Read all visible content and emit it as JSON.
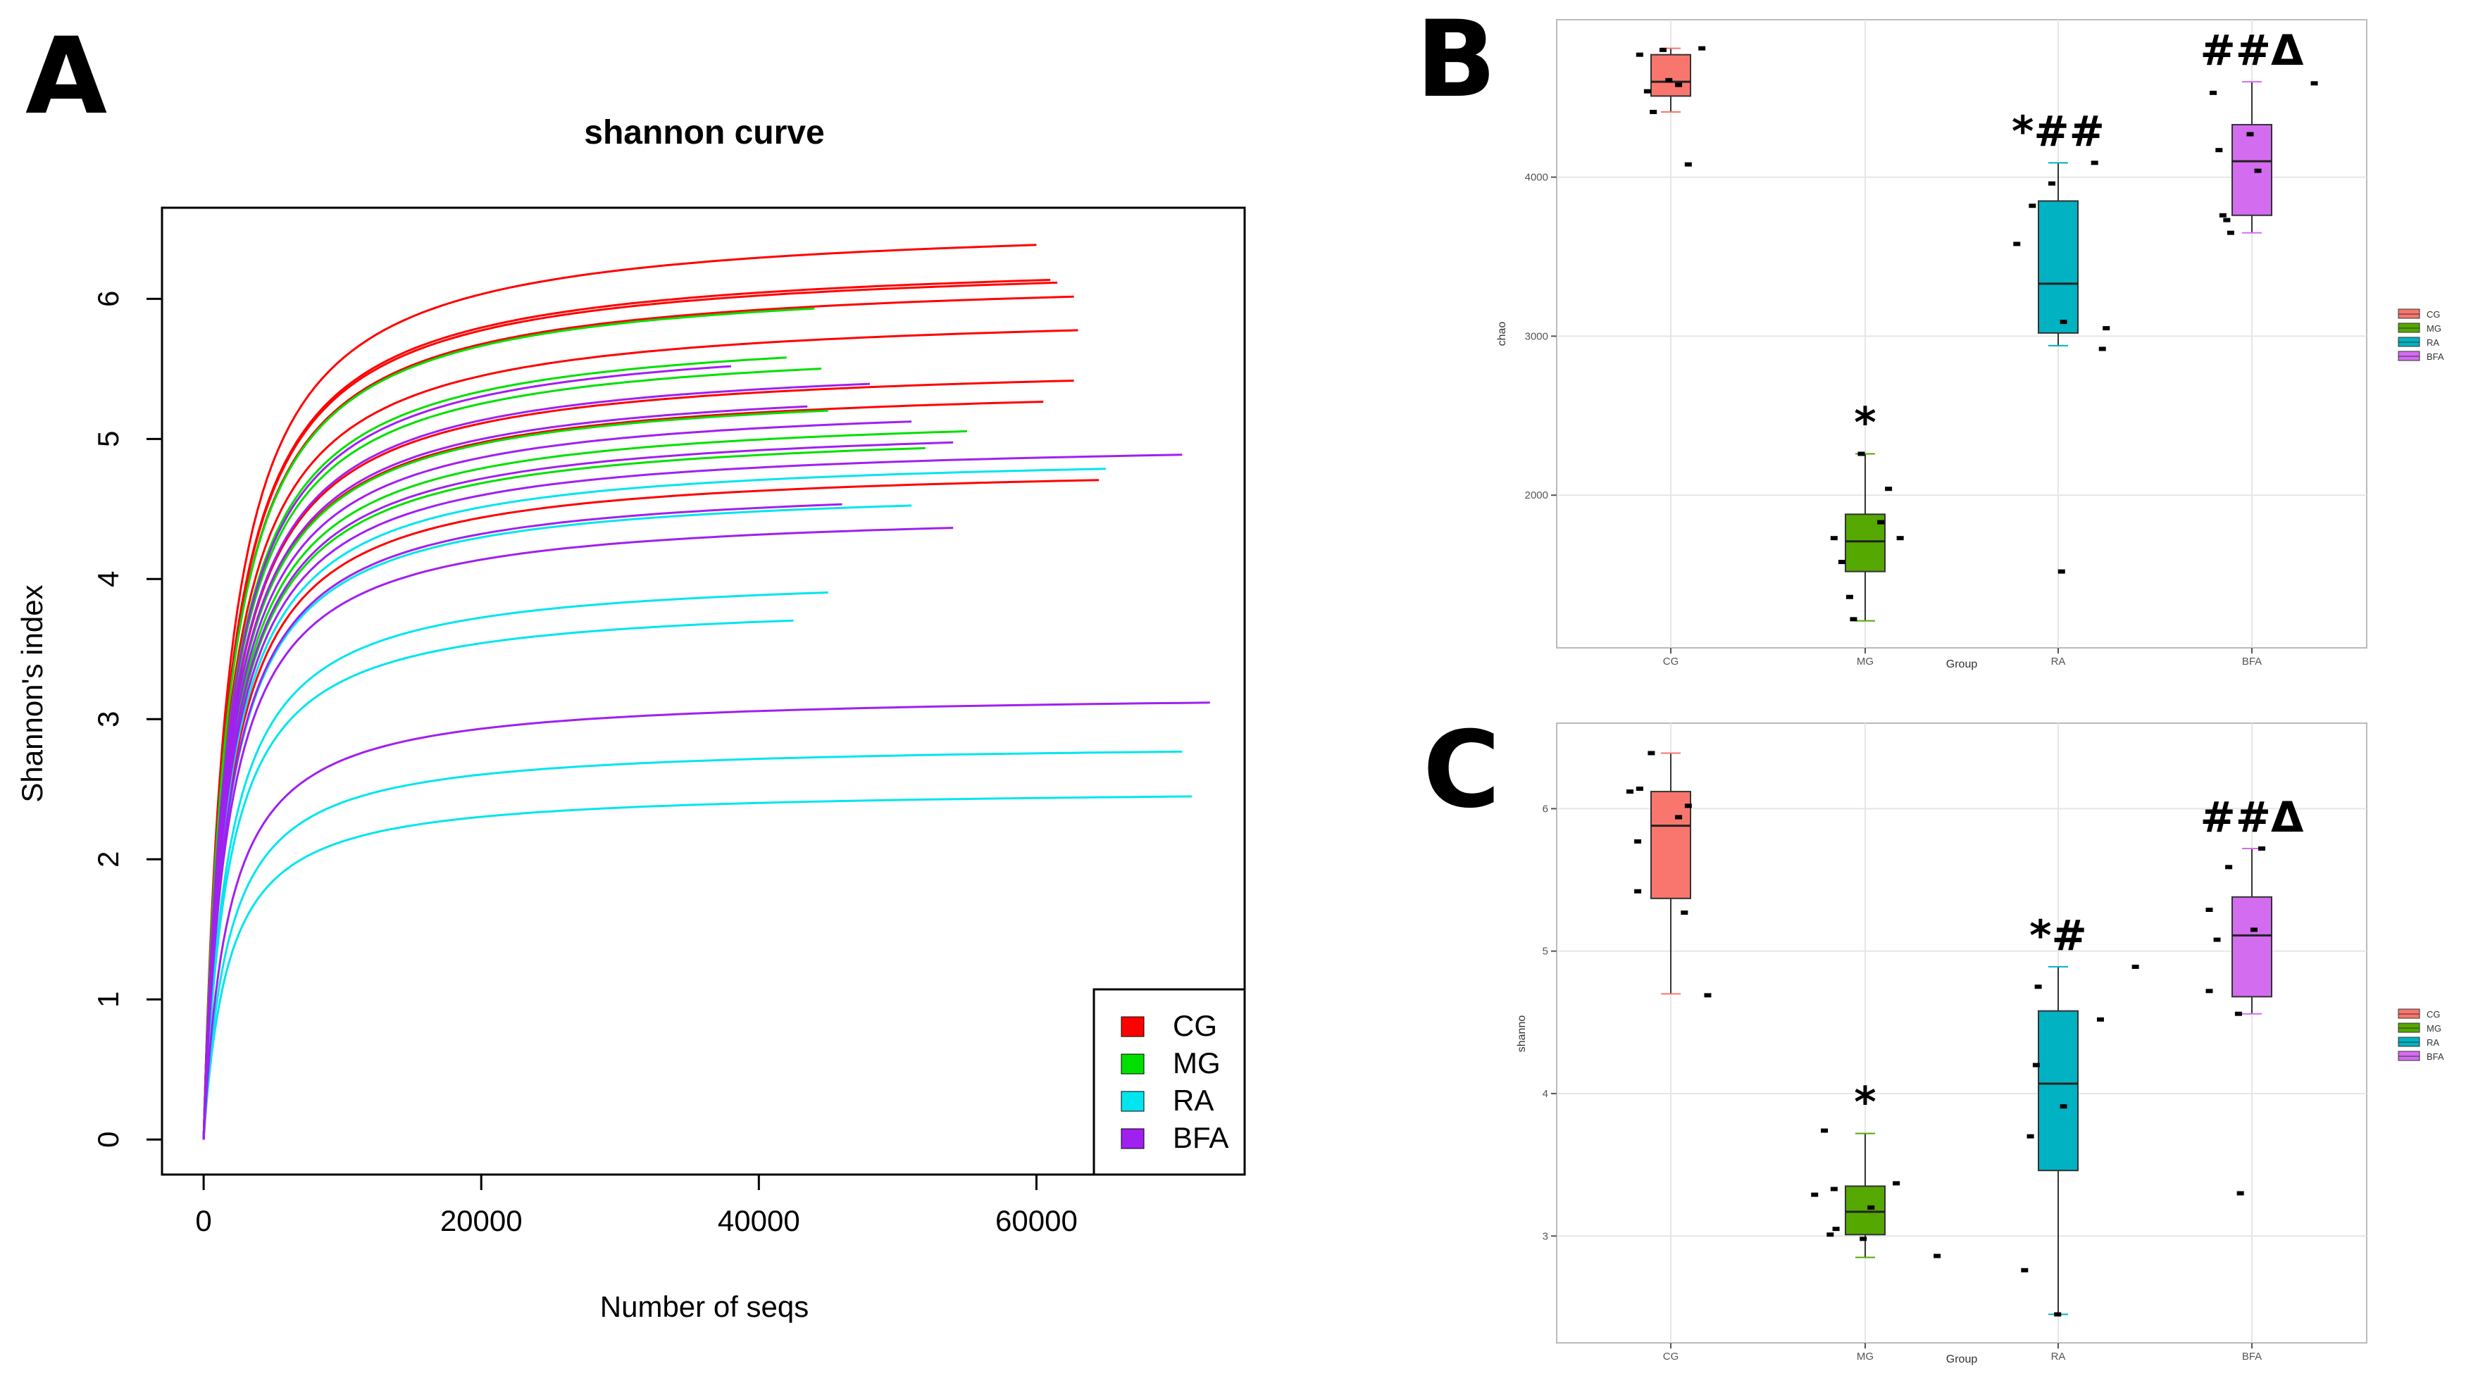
{
  "panels": {
    "a": "A",
    "b": "B",
    "c": "C"
  },
  "chart_data": [
    {
      "id": "A",
      "type": "line",
      "title": "shannon curve",
      "xlabel": "Number of seqs",
      "ylabel": "Shannon's index",
      "xlim": [
        -3000,
        75000
      ],
      "ylim": [
        -0.25,
        6.65
      ],
      "xticks": [
        0,
        20000,
        40000,
        60000
      ],
      "xtick_labels": [
        "0",
        "20000",
        "40000",
        "60000"
      ],
      "yticks": [
        0,
        1,
        2,
        3,
        4,
        5,
        6
      ],
      "ytick_labels": [
        "0",
        "1",
        "2",
        "3",
        "4",
        "5",
        "6"
      ],
      "legend": [
        {
          "label": "CG",
          "color": "#ff0000"
        },
        {
          "label": "MG",
          "color": "#00e000"
        },
        {
          "label": "RA",
          "color": "#00e5ee"
        },
        {
          "label": "BFA",
          "color": "#a020f0"
        }
      ],
      "series": [
        {
          "group": "CG",
          "end_x": 60000,
          "plateau": 6.39
        },
        {
          "group": "CG",
          "end_x": 61000,
          "plateau": 6.14
        },
        {
          "group": "CG",
          "end_x": 61500,
          "plateau": 6.12
        },
        {
          "group": "CG",
          "end_x": 62700,
          "plateau": 6.02
        },
        {
          "group": "CG",
          "end_x": 63000,
          "plateau": 5.78
        },
        {
          "group": "CG",
          "end_x": 62700,
          "plateau": 5.42
        },
        {
          "group": "CG",
          "end_x": 60500,
          "plateau": 5.27
        },
        {
          "group": "CG",
          "end_x": 64500,
          "plateau": 4.71
        },
        {
          "group": "MG",
          "end_x": 44000,
          "plateau": 5.94
        },
        {
          "group": "MG",
          "end_x": 42000,
          "plateau": 5.59
        },
        {
          "group": "MG",
          "end_x": 44500,
          "plateau": 5.51
        },
        {
          "group": "MG",
          "end_x": 45000,
          "plateau": 5.21
        },
        {
          "group": "MG",
          "end_x": 55000,
          "plateau": 5.06
        },
        {
          "group": "MG",
          "end_x": 52000,
          "plateau": 4.94
        },
        {
          "group": "RA",
          "end_x": 65000,
          "plateau": 4.79
        },
        {
          "group": "RA",
          "end_x": 51000,
          "plateau": 4.53
        },
        {
          "group": "RA",
          "end_x": 45000,
          "plateau": 3.91
        },
        {
          "group": "RA",
          "end_x": 42500,
          "plateau": 3.71
        },
        {
          "group": "RA",
          "end_x": 70500,
          "plateau": 2.77
        },
        {
          "group": "RA",
          "end_x": 71200,
          "plateau": 2.45
        },
        {
          "group": "BFA",
          "end_x": 38000,
          "plateau": 5.53
        },
        {
          "group": "BFA",
          "end_x": 48000,
          "plateau": 5.4
        },
        {
          "group": "BFA",
          "end_x": 43500,
          "plateau": 5.24
        },
        {
          "group": "BFA",
          "end_x": 51000,
          "plateau": 5.13
        },
        {
          "group": "BFA",
          "end_x": 54000,
          "plateau": 4.98
        },
        {
          "group": "BFA",
          "end_x": 70500,
          "plateau": 4.89
        },
        {
          "group": "BFA",
          "end_x": 46000,
          "plateau": 4.54
        },
        {
          "group": "BFA",
          "end_x": 54000,
          "plateau": 4.37
        },
        {
          "group": "BFA",
          "end_x": 72500,
          "plateau": 3.12
        }
      ]
    },
    {
      "id": "B",
      "type": "box",
      "xlabel": "Group",
      "ylabel": "chao",
      "ylim": [
        1040,
        4990
      ],
      "yticks": [
        2000,
        3000,
        4000
      ],
      "ytick_labels": [
        "2000",
        "3000",
        "4000"
      ],
      "categories": [
        "CG",
        "MG",
        "RA",
        "BFA"
      ],
      "colors": [
        "#f8766d",
        "#55a800",
        "#00b2c2",
        "#d46cf0"
      ],
      "legend": [
        "CG",
        "MG",
        "RA",
        "BFA"
      ],
      "annotations": [
        "",
        "*",
        "*##",
        "##Δ"
      ],
      "boxes": [
        {
          "min": 4410,
          "q1": 4510,
          "median": 4600,
          "q3": 4770,
          "max": 4810
        },
        {
          "min": 1210,
          "q1": 1520,
          "median": 1710,
          "q3": 1880,
          "max": 2260
        },
        {
          "min": 2940,
          "q1": 3020,
          "median": 3330,
          "q3": 3850,
          "max": 4090
        },
        {
          "min": 3650,
          "q1": 3760,
          "median": 4100,
          "q3": 4330,
          "max": 4600
        }
      ],
      "points": [
        [
          [
            0.84,
            4770
          ],
          [
            0.88,
            4540
          ],
          [
            0.91,
            4410
          ],
          [
            0.96,
            4800
          ],
          [
            0.99,
            4610
          ],
          [
            1.04,
            4580
          ],
          [
            1.09,
            4080
          ],
          [
            1.16,
            4810
          ]
        ],
        [
          [
            1.84,
            1730
          ],
          [
            1.88,
            1580
          ],
          [
            1.92,
            1360
          ],
          [
            1.94,
            1220
          ],
          [
            1.98,
            2260
          ],
          [
            2.08,
            1830
          ],
          [
            2.12,
            2040
          ],
          [
            2.18,
            1730
          ]
        ],
        [
          [
            2.78,
            3580
          ],
          [
            2.86,
            3820
          ],
          [
            2.96,
            3960
          ],
          [
            3.02,
            3090
          ],
          [
            3.18,
            4090
          ],
          [
            3.22,
            2920
          ],
          [
            3.24,
            3050
          ],
          [
            3.01,
            1520
          ]
        ],
        [
          [
            3.79,
            4530
          ],
          [
            3.82,
            4170
          ],
          [
            3.84,
            3760
          ],
          [
            3.86,
            3730
          ],
          [
            3.88,
            3650
          ],
          [
            3.98,
            4270
          ],
          [
            4.02,
            4040
          ],
          [
            4.31,
            4590
          ]
        ]
      ]
    },
    {
      "id": "C",
      "type": "box",
      "xlabel": "Group",
      "ylabel": "shanno",
      "ylim": [
        2.25,
        6.6
      ],
      "yticks": [
        3,
        4,
        5,
        6
      ],
      "ytick_labels": [
        "3",
        "4",
        "5",
        "6"
      ],
      "categories": [
        "CG",
        "MG",
        "RA",
        "BFA"
      ],
      "colors": [
        "#f8766d",
        "#55a800",
        "#00b2c2",
        "#d46cf0"
      ],
      "legend": [
        "CG",
        "MG",
        "RA",
        "BFA"
      ],
      "annotations": [
        "",
        "*",
        "*#",
        "##Δ"
      ],
      "boxes": [
        {
          "min": 4.7,
          "q1": 5.37,
          "median": 5.88,
          "q3": 6.12,
          "max": 6.39
        },
        {
          "min": 2.85,
          "q1": 3.01,
          "median": 3.17,
          "q3": 3.35,
          "max": 3.72
        },
        {
          "min": 2.45,
          "q1": 3.46,
          "median": 4.07,
          "q3": 4.58,
          "max": 4.89
        },
        {
          "min": 4.56,
          "q1": 4.68,
          "median": 5.11,
          "q3": 5.38,
          "max": 5.72
        }
      ],
      "points": [
        [
          [
            0.79,
            6.12
          ],
          [
            0.83,
            5.42
          ],
          [
            0.83,
            5.77
          ],
          [
            0.84,
            6.14
          ],
          [
            0.9,
            6.39
          ],
          [
            1.04,
            5.94
          ],
          [
            1.07,
            5.27
          ],
          [
            1.09,
            6.02
          ],
          [
            1.19,
            4.69
          ]
        ],
        [
          [
            1.74,
            3.29
          ],
          [
            1.79,
            3.74
          ],
          [
            1.82,
            3.01
          ],
          [
            1.85,
            3.05
          ],
          [
            1.84,
            3.33
          ],
          [
            1.99,
            2.98
          ],
          [
            2.03,
            3.2
          ],
          [
            2.16,
            3.37
          ],
          [
            2.37,
            2.86
          ]
        ],
        [
          [
            2.82,
            2.76
          ],
          [
            2.85,
            3.7
          ],
          [
            2.88,
            4.2
          ],
          [
            2.89,
            4.75
          ],
          [
            2.99,
            2.45
          ],
          [
            3.02,
            3.91
          ],
          [
            3.21,
            4.52
          ],
          [
            3.39,
            4.89
          ]
        ],
        [
          [
            3.77,
            4.72
          ],
          [
            3.77,
            5.29
          ],
          [
            3.81,
            5.08
          ],
          [
            3.87,
            5.59
          ],
          [
            3.92,
            4.56
          ],
          [
            3.93,
            3.3
          ],
          [
            4.0,
            5.15
          ],
          [
            4.04,
            5.72
          ]
        ]
      ]
    }
  ]
}
